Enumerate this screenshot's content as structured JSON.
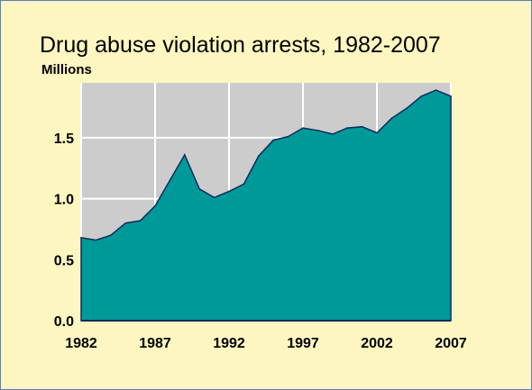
{
  "chart_data": {
    "type": "area",
    "title": "Drug abuse violation arrests, 1982-2007",
    "ylabel": "Millions",
    "xlabel": "",
    "x": [
      1982,
      1983,
      1984,
      1985,
      1986,
      1987,
      1988,
      1989,
      1990,
      1991,
      1992,
      1993,
      1994,
      1995,
      1996,
      1997,
      1998,
      1999,
      2000,
      2001,
      2002,
      2003,
      2004,
      2005,
      2006,
      2007
    ],
    "series": [
      {
        "values": [
          0.68,
          0.66,
          0.7,
          0.8,
          0.82,
          0.94,
          1.15,
          1.36,
          1.08,
          1.01,
          1.06,
          1.12,
          1.35,
          1.48,
          1.51,
          1.58,
          1.56,
          1.53,
          1.58,
          1.59,
          1.54,
          1.66,
          1.74,
          1.84,
          1.89,
          1.84
        ]
      }
    ],
    "x_ticks": [
      "1982",
      "1987",
      "1992",
      "1997",
      "2002",
      "2007"
    ],
    "y_ticks": [
      "0.0",
      "0.5",
      "1.0",
      "1.5"
    ],
    "xlim": [
      1982,
      2007
    ],
    "ylim": [
      0,
      1.95
    ],
    "grid": true,
    "colors": {
      "fill": "#009999",
      "line": "#0e2a5c",
      "plot_background": "#cccccc",
      "grid": "#ffffff",
      "page_background": "#fdf6c0",
      "border": "#5a7fbf"
    }
  }
}
